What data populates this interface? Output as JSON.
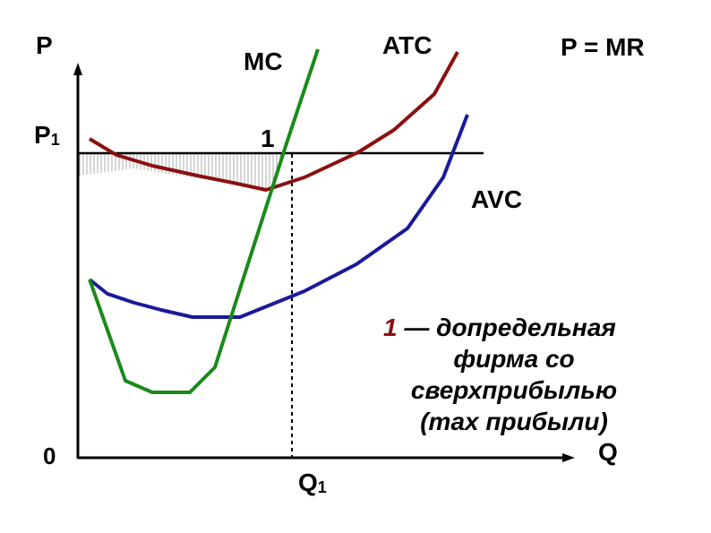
{
  "labels": {
    "p_axis": "P",
    "q_axis": "Q",
    "origin": "0",
    "p1": "P",
    "p1_sub": "1",
    "q1": "Q",
    "q1_sub": "1",
    "mc": "MC",
    "atc": "ATC",
    "avc": "AVC",
    "price_line": "P = MR",
    "point_1": "1"
  },
  "caption": {
    "marker": "1",
    "line1": " — допредельная",
    "line2": "фирма со",
    "line3": "сверхприбылью",
    "line4": "(max прибыли)"
  },
  "colors": {
    "mc": "#1a8a1a",
    "atc": "#8b1010",
    "avc": "#1a1a9a",
    "axis": "#000000",
    "hatch": "#9a9a9a",
    "marker": "#8b1010"
  }
}
